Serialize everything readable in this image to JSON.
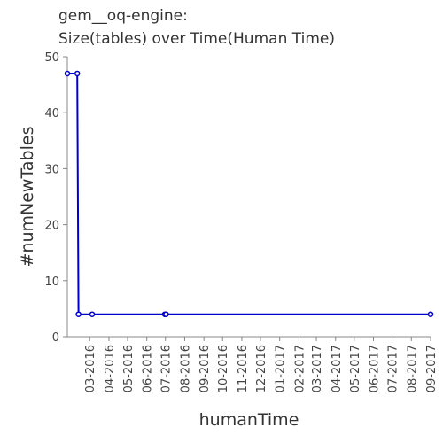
{
  "chart_data": {
    "type": "line",
    "title_line1": "gem__oq-engine:",
    "title_line2": "Size(tables) over Time(Human Time)",
    "xlabel": "humanTime",
    "ylabel": "#numNewTables",
    "ylim": [
      0,
      50
    ],
    "yticks": [
      0,
      10,
      20,
      30,
      40,
      50
    ],
    "xticks": [
      "03-2016",
      "04-2016",
      "05-2016",
      "06-2016",
      "07-2016",
      "08-2016",
      "09-2016",
      "10-2016",
      "11-2016",
      "12-2016",
      "01-2017",
      "02-2017",
      "03-2017",
      "04-2017",
      "05-2017",
      "06-2017",
      "07-2017",
      "08-2017",
      "09-2017"
    ],
    "grid": false,
    "legend": "none",
    "color": "#0000cc",
    "series": [
      {
        "x": [
          "2016-01-25",
          "2016-02-10",
          "2016-02-12",
          "2016-03-05",
          "2016-06-30",
          "2016-07-02",
          "2017-09-01"
        ],
        "values": [
          47,
          47,
          4,
          4,
          4,
          4,
          4
        ]
      }
    ]
  }
}
